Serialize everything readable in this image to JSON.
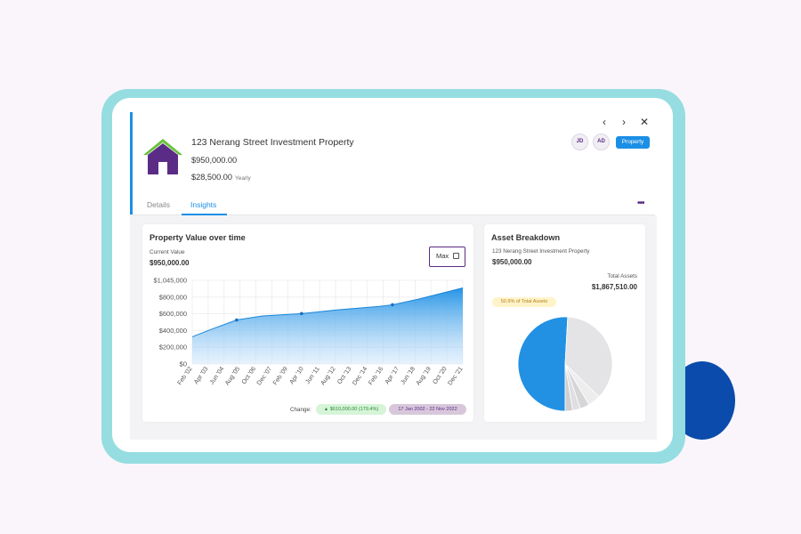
{
  "property": {
    "title": "123 Nerang Street Investment Property",
    "value": "$950,000.00",
    "income": "$28,500.00",
    "income_frequency": "Yearly",
    "badge": "Property"
  },
  "header": {
    "avatars": [
      "JD",
      "AD"
    ]
  },
  "tabs": [
    {
      "label": "Details",
      "active": false
    },
    {
      "label": "Insights",
      "active": true
    }
  ],
  "colors": {
    "accent": "#1b8fe5",
    "purple": "#5b2c86",
    "house_roof": "#67c23a",
    "frame": "#95dde0"
  },
  "property_value_panel": {
    "title": "Property Value over time",
    "current_label": "Current Value",
    "current_value": "$950,000.00",
    "range_button": "Max",
    "change_label": "Change:",
    "change_value": "▲ $610,000.00 (179.4%)",
    "date_range": "17 Jan 2002 - 22 Nov 2022"
  },
  "asset_panel": {
    "title": "Asset Breakdown",
    "property_name": "123 Nerang Street Investment Property",
    "property_value": "$950,000.00",
    "total_label": "Total Assets",
    "total_value": "$1,867,510.00",
    "share_label": "50.9% of Total Assets"
  },
  "chart_data": [
    {
      "type": "area",
      "y_ticks": [
        "$1,045,000",
        "$800,000",
        "$600,000",
        "$400,000",
        "$200,000",
        "$0"
      ],
      "ylim": [
        0,
        1045000
      ],
      "x_ticks": [
        "Feb '02",
        "Apr '03",
        "Jun '04",
        "Aug '05",
        "Oct '06",
        "Dec '07",
        "Feb '09",
        "Apr '10",
        "Jun '11",
        "Aug '12",
        "Oct '13",
        "Dec '14",
        "Feb '16",
        "Apr '17",
        "Jun '18",
        "Aug '19",
        "Oct '20",
        "Dec '21"
      ],
      "x": [
        "2002-01",
        "2003-06",
        "2005-06",
        "2007-06",
        "2010-06",
        "2013-06",
        "2016-06",
        "2017-06",
        "2019-06",
        "2022-11"
      ],
      "values": [
        340000,
        430000,
        550000,
        600000,
        630000,
        680000,
        720000,
        740000,
        810000,
        950000
      ],
      "markers": [
        "2005-06",
        "2010-06",
        "2017-06"
      ],
      "grid": true
    },
    {
      "type": "pie",
      "values": [
        950000,
        680000,
        80000,
        60000,
        50000,
        47510
      ],
      "colors": [
        "#2291e3",
        "#e4e4e6",
        "#ededee",
        "#d6d6d8",
        "#dfdfe1",
        "#cfcfd1"
      ]
    }
  ]
}
